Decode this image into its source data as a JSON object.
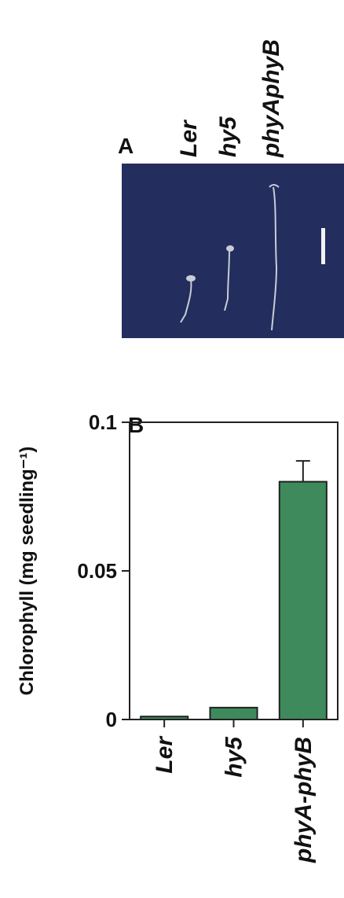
{
  "panel_a": {
    "label": "A",
    "lanes": [
      "Ler",
      "hy5",
      "phyAphyB"
    ]
  },
  "chart_data": {
    "type": "bar",
    "panel_label": "B",
    "ylabel": "Chlorophyll (mg seedling⁻¹)",
    "categories": [
      "Ler",
      "hy5",
      "phyA-phyB"
    ],
    "values": [
      0.001,
      0.004,
      0.08
    ],
    "errors": [
      null,
      null,
      0.007
    ],
    "color": "#3f8a5c",
    "ylim": [
      0,
      0.1
    ],
    "yticks": [
      0,
      0.05,
      0.1
    ]
  }
}
